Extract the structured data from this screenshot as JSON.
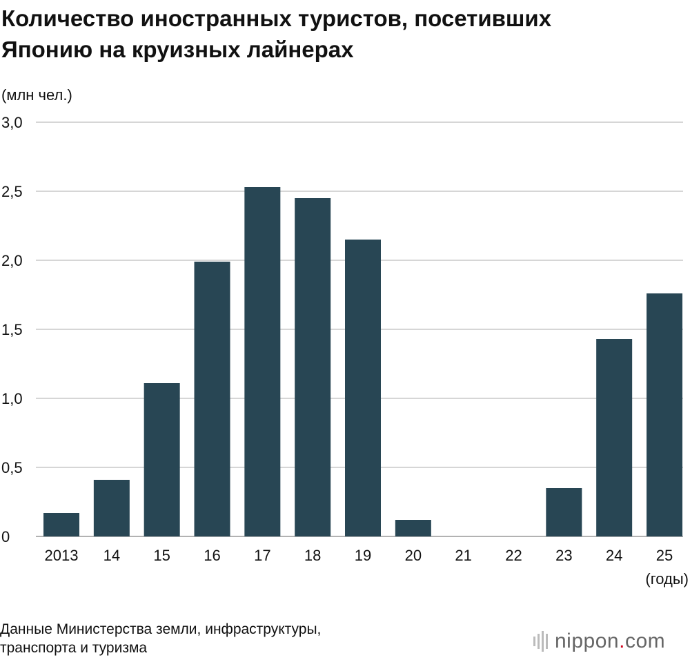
{
  "title_lines": [
    "Количество иностранных туристов, посетивших",
    "Японию на круизных лайнерах"
  ],
  "source_lines": [
    "Данные Министерства земли, инфраструктуры,",
    "транспорта и туризма"
  ],
  "logo": {
    "prefix": "nippon",
    "dot": ".",
    "suffix": "com",
    "dot_color": "#d0021b"
  },
  "chart_data": {
    "type": "bar",
    "title": "Количество иностранных туристов, посетивших Японию на круизных лайнерах",
    "ylabel": "(млн чел.)",
    "xlabel": "(годы)",
    "categories": [
      "2013",
      "14",
      "15",
      "16",
      "17",
      "18",
      "19",
      "20",
      "21",
      "22",
      "23",
      "24",
      "25"
    ],
    "values": [
      0.17,
      0.41,
      1.11,
      1.99,
      2.53,
      2.45,
      2.15,
      0.12,
      0,
      0,
      0.35,
      1.43,
      1.76
    ],
    "yticks": [
      0,
      0.5,
      1.0,
      1.5,
      2.0,
      2.5,
      3.0
    ],
    "ytick_labels": [
      "0",
      "0,5",
      "1,0",
      "1,5",
      "2,0",
      "2,5",
      "3,0"
    ],
    "ylim": [
      0,
      3.0
    ],
    "grid": true,
    "bar_color": "#284654",
    "grid_color": "#c8c8c8"
  }
}
